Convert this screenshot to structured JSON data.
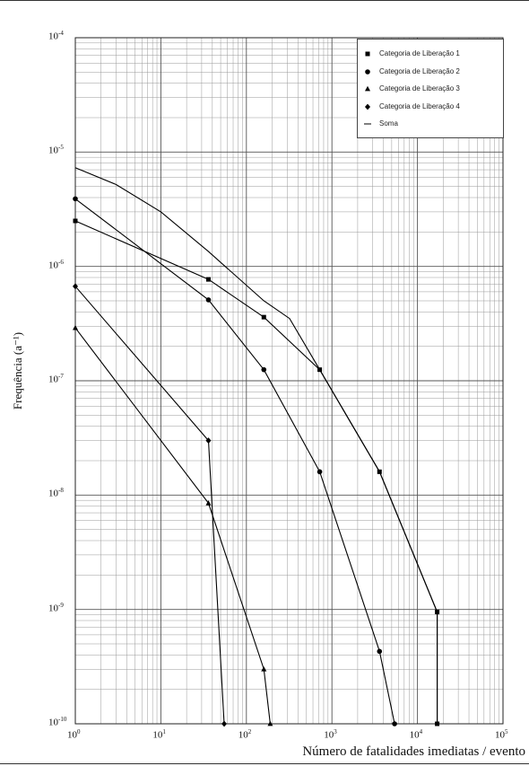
{
  "chart_data": {
    "type": "line",
    "xscale": "log",
    "yscale": "log",
    "xlim": [
      1,
      100000
    ],
    "ylim": [
      1e-10,
      0.0001
    ],
    "grid": true,
    "legend_position": "top-right",
    "xlabel": "Número de fatalidades imediatas / evento",
    "ylabel": "Frequência (a⁻¹)",
    "x_ticks": [
      {
        "base": "10",
        "exp": "0"
      },
      {
        "base": "10",
        "exp": "1"
      },
      {
        "base": "10",
        "exp": "2"
      },
      {
        "base": "10",
        "exp": "3"
      },
      {
        "base": "10",
        "exp": "4"
      },
      {
        "base": "10",
        "exp": "5"
      }
    ],
    "y_ticks": [
      {
        "base": "10",
        "exp": "-4"
      },
      {
        "base": "10",
        "exp": "-5"
      },
      {
        "base": "10",
        "exp": "-6"
      },
      {
        "base": "10",
        "exp": "-7"
      },
      {
        "base": "10",
        "exp": "-8"
      },
      {
        "base": "10",
        "exp": "-9"
      },
      {
        "base": "10",
        "exp": "-10"
      }
    ],
    "series": [
      {
        "name": "Categoria de Liberação 1",
        "marker": "square",
        "points": [
          [
            1,
            2.5e-06
          ],
          [
            36,
            7.7e-07
          ],
          [
            160,
            3.6e-07
          ],
          [
            720,
            1.25e-07
          ],
          [
            3600,
            1.6e-08
          ],
          [
            17000,
            9.5e-10
          ],
          [
            17000,
            1e-10
          ]
        ]
      },
      {
        "name": "Categoria de Liberação 2",
        "marker": "circle",
        "points": [
          [
            1,
            3.9e-06
          ],
          [
            36,
            5.1e-07
          ],
          [
            160,
            1.25e-07
          ],
          [
            720,
            1.6e-08
          ],
          [
            3600,
            4.3e-10
          ],
          [
            5400,
            1e-10
          ]
        ]
      },
      {
        "name": "Categoria de Liberação 3",
        "marker": "triangle",
        "points": [
          [
            1,
            2.9e-07
          ],
          [
            36,
            8.5e-09
          ],
          [
            160,
            3e-10
          ],
          [
            190,
            1e-10
          ]
        ]
      },
      {
        "name": "Categoria de Liberação 4",
        "marker": "diamond",
        "points": [
          [
            1,
            6.7e-07
          ],
          [
            36,
            3e-08
          ],
          [
            55,
            1e-10
          ]
        ]
      },
      {
        "name": "Soma",
        "marker": "none",
        "points": [
          [
            1,
            7.3e-06
          ],
          [
            3,
            5.2e-06
          ],
          [
            10,
            3e-06
          ],
          [
            36,
            1.35e-06
          ],
          [
            160,
            5e-07
          ],
          [
            320,
            3.5e-07
          ],
          [
            720,
            1.25e-07
          ],
          [
            3600,
            1.6e-08
          ],
          [
            17000,
            9.5e-10
          ],
          [
            17000,
            1e-10
          ]
        ]
      }
    ]
  }
}
